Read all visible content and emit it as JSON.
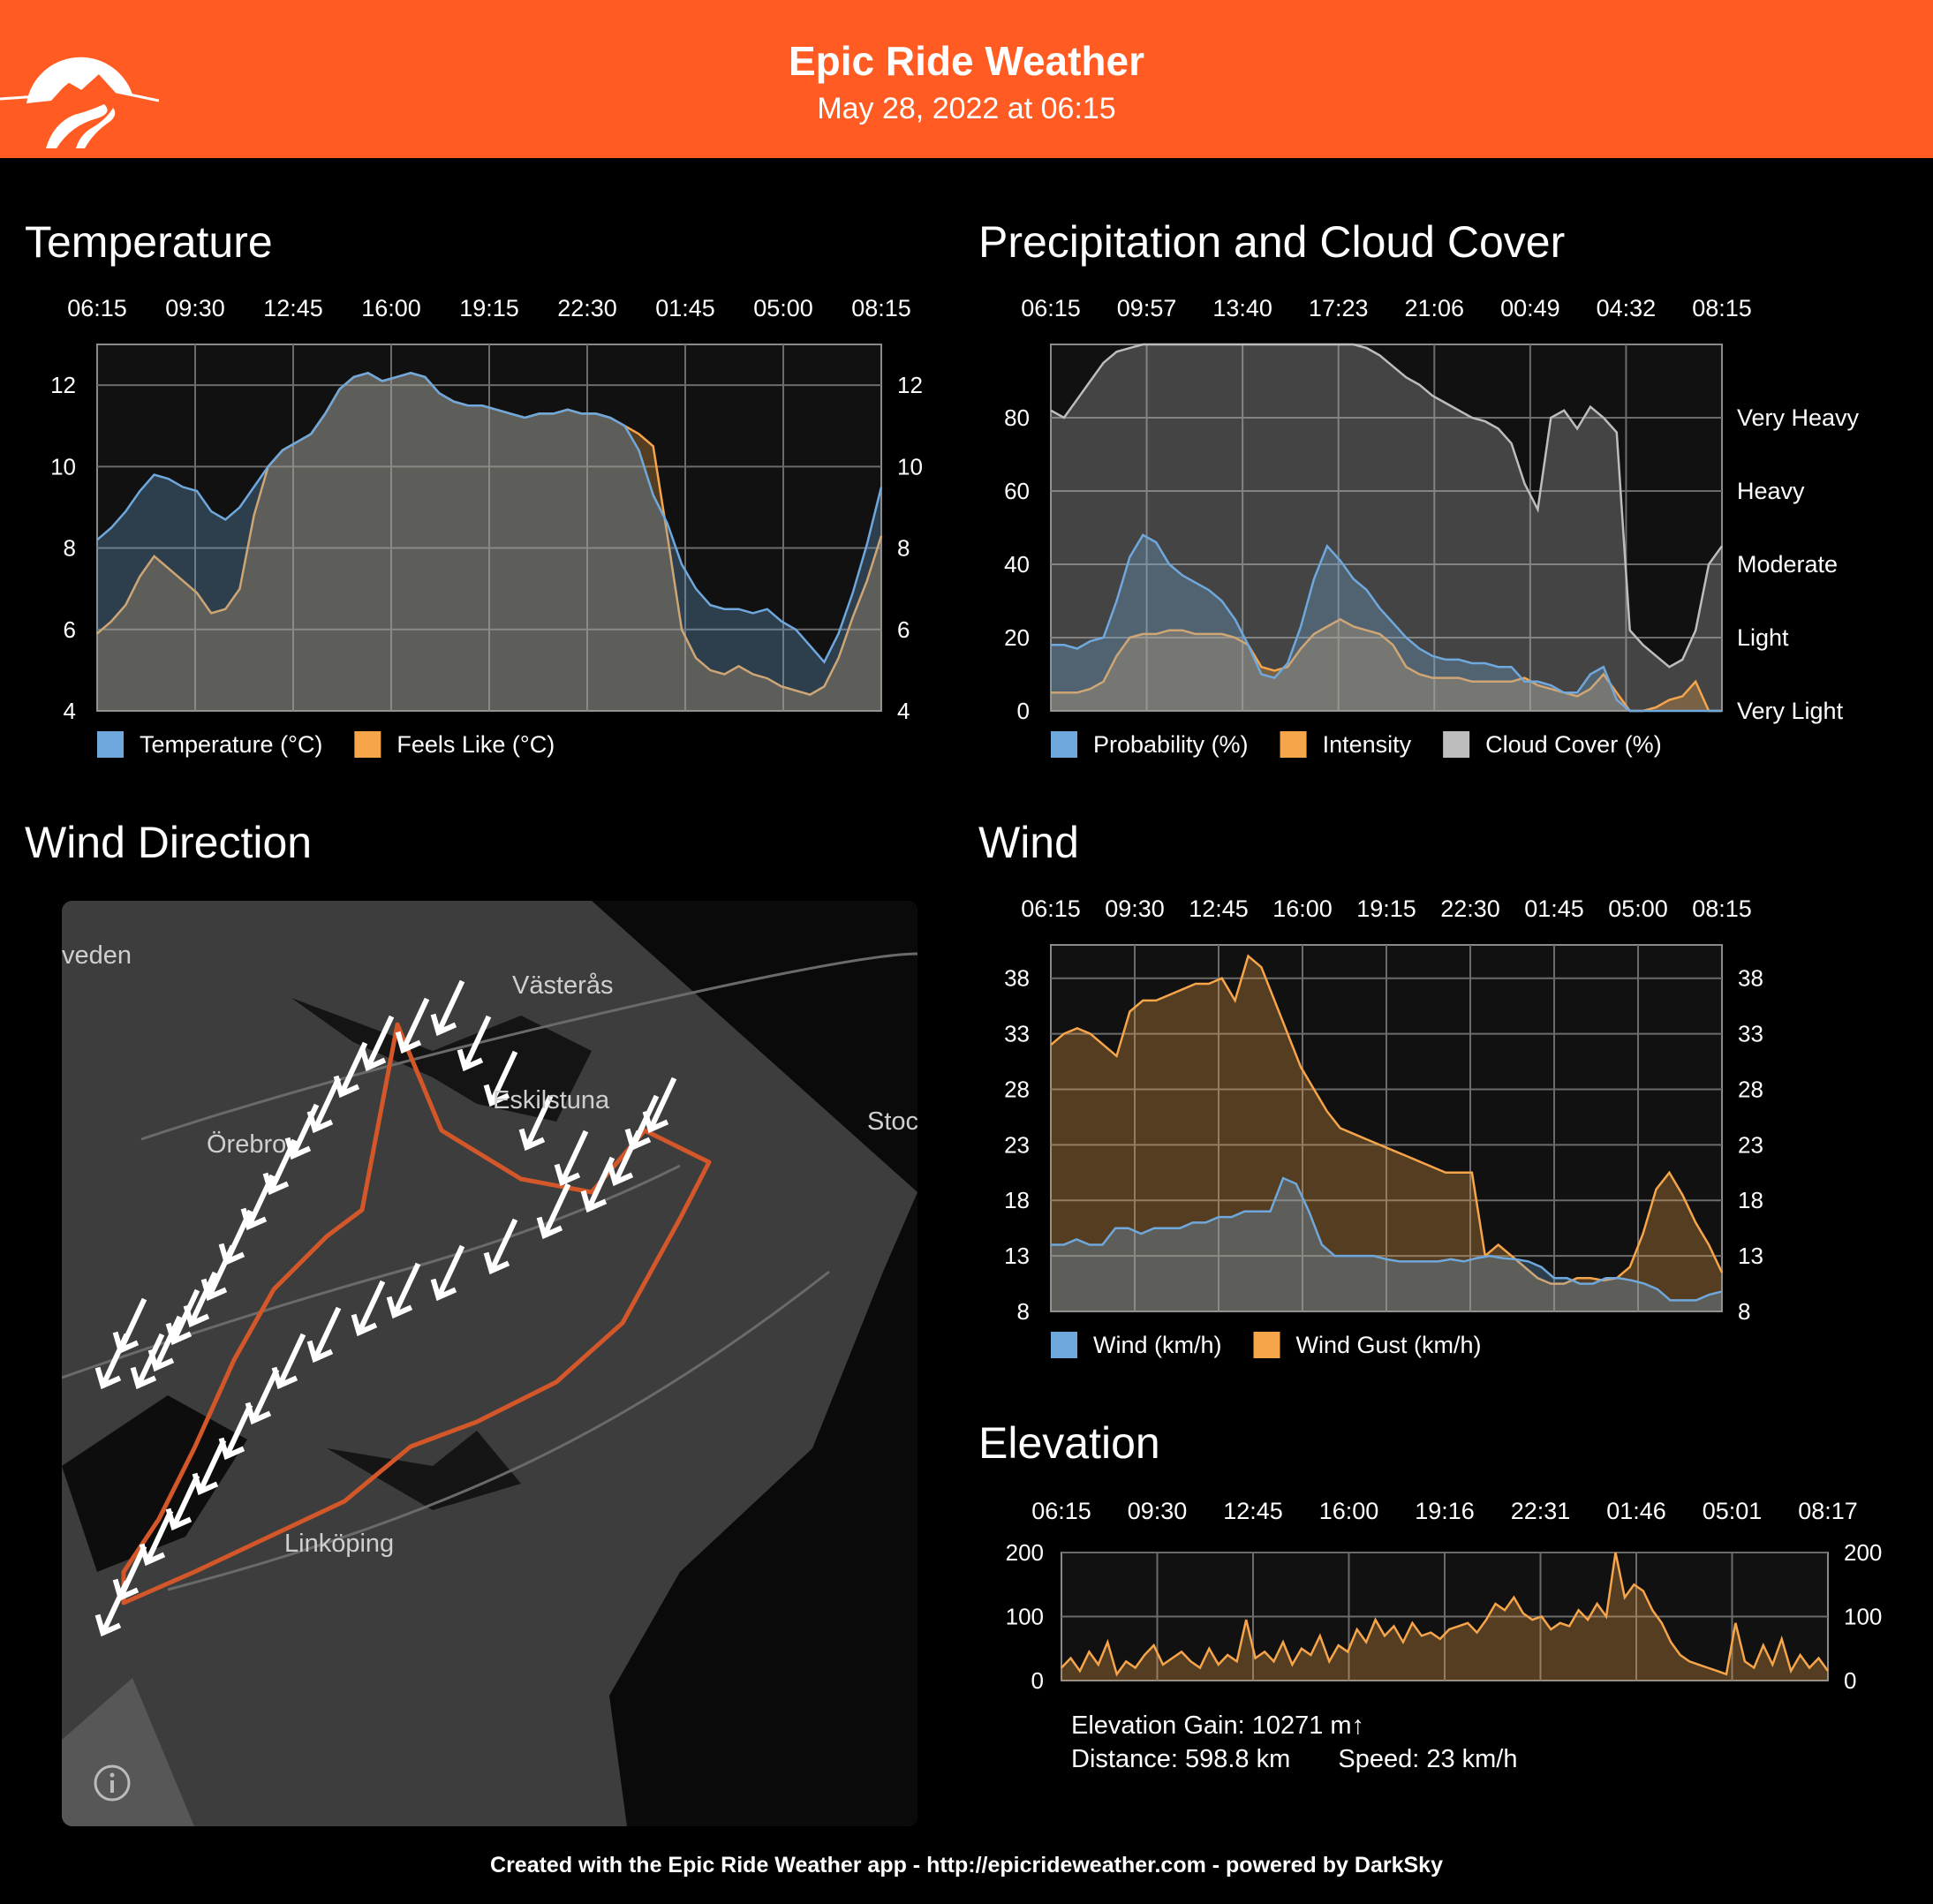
{
  "header": {
    "title": "Epic Ride Weather",
    "subtitle": "May 28, 2022 at 06:15"
  },
  "sections": {
    "temperature": "Temperature",
    "precipitation": "Precipitation and Cloud Cover",
    "wind_direction": "Wind Direction",
    "wind": "Wind",
    "elevation": "Elevation"
  },
  "map": {
    "city_labels": [
      "veden",
      "Västerås",
      "Eskilstuna",
      "Örebro",
      "Stoc",
      "Linköping"
    ],
    "info_icon": "info-icon"
  },
  "stats": {
    "elevation_gain": "Elevation Gain: 10271 m↑",
    "distance": "Distance: 598.8 km",
    "speed": "Speed: 23 km/h"
  },
  "footer": "Created with the Epic Ride Weather app - http://epicrideweather.com - powered by DarkSky",
  "colors": {
    "header_bg": "#ff5b22",
    "blue_series": "#6fa8dc",
    "orange_series": "#f6a54a",
    "gray_series": "#bdbdbd",
    "route": "#d4572a"
  },
  "chart_data": [
    {
      "id": "temperature",
      "type": "area",
      "time_ticks": [
        "06:15",
        "09:30",
        "12:45",
        "16:00",
        "19:15",
        "22:30",
        "01:45",
        "05:00",
        "08:15"
      ],
      "ylim": [
        4,
        13
      ],
      "yticks": [
        4,
        6,
        8,
        10,
        12
      ],
      "grid": true,
      "series": [
        {
          "name": "Temperature (°C)",
          "color": "#6fa8dc",
          "values": [
            8.2,
            8.5,
            8.9,
            9.4,
            9.8,
            9.7,
            9.5,
            9.4,
            8.9,
            8.7,
            9.0,
            9.5,
            10.0,
            10.4,
            10.6,
            10.8,
            11.3,
            11.9,
            12.2,
            12.3,
            12.1,
            12.2,
            12.3,
            12.2,
            11.8,
            11.6,
            11.5,
            11.5,
            11.4,
            11.3,
            11.2,
            11.3,
            11.3,
            11.4,
            11.3,
            11.3,
            11.2,
            11.0,
            10.4,
            9.3,
            8.6,
            7.6,
            7.0,
            6.6,
            6.5,
            6.5,
            6.4,
            6.5,
            6.2,
            6.0,
            5.6,
            5.2,
            5.9,
            6.9,
            8.1,
            9.5
          ]
        },
        {
          "name": "Feels Like (°C)",
          "color": "#f6a54a",
          "values": [
            5.9,
            6.2,
            6.6,
            7.3,
            7.8,
            7.5,
            7.2,
            6.9,
            6.4,
            6.5,
            7.0,
            8.8,
            10.0,
            10.4,
            10.6,
            10.8,
            11.3,
            11.9,
            12.2,
            12.3,
            12.1,
            12.2,
            12.3,
            12.2,
            11.8,
            11.6,
            11.5,
            11.5,
            11.4,
            11.3,
            11.2,
            11.3,
            11.3,
            11.4,
            11.3,
            11.3,
            11.2,
            11.0,
            10.8,
            10.5,
            8.3,
            6.0,
            5.3,
            5.0,
            4.9,
            5.1,
            4.9,
            4.8,
            4.6,
            4.5,
            4.4,
            4.6,
            5.3,
            6.3,
            7.2,
            8.3
          ]
        }
      ]
    },
    {
      "id": "precipitation",
      "type": "area",
      "time_ticks": [
        "06:15",
        "09:57",
        "13:40",
        "17:23",
        "21:06",
        "00:49",
        "04:32",
        "08:15"
      ],
      "ylim": [
        0,
        100
      ],
      "yticks": [
        0,
        20,
        40,
        60,
        80
      ],
      "right_labels": [
        "Very Light",
        "Light",
        "Moderate",
        "Heavy",
        "Very Heavy"
      ],
      "grid": true,
      "series": [
        {
          "name": "Probability (%)",
          "color": "#6fa8dc",
          "values": [
            18,
            18,
            17,
            19,
            20,
            30,
            42,
            48,
            46,
            40,
            37,
            35,
            33,
            30,
            25,
            18,
            10,
            9,
            13,
            23,
            36,
            45,
            41,
            36,
            33,
            28,
            24,
            20,
            17,
            15,
            14,
            14,
            13,
            13,
            12,
            12,
            8,
            8,
            7,
            5,
            5,
            10,
            12,
            3,
            0,
            0,
            0,
            0,
            0,
            0,
            0,
            0
          ]
        },
        {
          "name": "Intensity",
          "color": "#f6a54a",
          "values": [
            5,
            5,
            5,
            6,
            8,
            15,
            20,
            21,
            21,
            22,
            22,
            21,
            21,
            21,
            20,
            18,
            12,
            11,
            12,
            17,
            21,
            23,
            25,
            23,
            22,
            21,
            18,
            12,
            10,
            9,
            9,
            9,
            8,
            8,
            8,
            8,
            9,
            7,
            6,
            5,
            4,
            6,
            10,
            5,
            0,
            0,
            1,
            3,
            4,
            8,
            0,
            0
          ]
        },
        {
          "name": "Cloud Cover (%)",
          "color": "#bdbdbd",
          "values": [
            82,
            80,
            85,
            90,
            95,
            98,
            99,
            100,
            100,
            100,
            100,
            100,
            100,
            100,
            100,
            100,
            100,
            100,
            100,
            100,
            100,
            100,
            100,
            100,
            99,
            97,
            94,
            91,
            89,
            86,
            84,
            82,
            80,
            79,
            77,
            73,
            62,
            55,
            80,
            82,
            77,
            83,
            80,
            76,
            22,
            18,
            15,
            12,
            14,
            22,
            40,
            45
          ]
        }
      ]
    },
    {
      "id": "wind",
      "type": "area",
      "time_ticks": [
        "06:15",
        "09:30",
        "12:45",
        "16:00",
        "19:15",
        "22:30",
        "01:45",
        "05:00",
        "08:15"
      ],
      "ylim": [
        8,
        41
      ],
      "yticks": [
        8,
        13,
        18,
        23,
        28,
        33,
        38
      ],
      "grid": true,
      "series": [
        {
          "name": "Wind (km/h)",
          "color": "#6fa8dc",
          "values": [
            14,
            14,
            14.5,
            14,
            14,
            15.5,
            15.5,
            15,
            15.5,
            15.5,
            15.5,
            16,
            16,
            16.5,
            16.5,
            17,
            17,
            17,
            20,
            19.5,
            17,
            14,
            13,
            13,
            13,
            13,
            12.7,
            12.5,
            12.5,
            12.5,
            12.5,
            12.7,
            12.5,
            12.8,
            13,
            12.8,
            12.7,
            12.5,
            12,
            11,
            11,
            10.5,
            10.5,
            11,
            11,
            10.8,
            10.5,
            10,
            9,
            9,
            9,
            9.5,
            9.8
          ]
        },
        {
          "name": "Wind Gust (km/h)",
          "color": "#f6a54a",
          "values": [
            32,
            33,
            33.5,
            33,
            32,
            31,
            35,
            36,
            36,
            36.5,
            37,
            37.5,
            37.5,
            38,
            36,
            40,
            39,
            36,
            33,
            30,
            28,
            26,
            24.5,
            24,
            23.5,
            23,
            22.5,
            22,
            21.5,
            21,
            20.5,
            20.5,
            20.5,
            13,
            14,
            13,
            12,
            11,
            10.5,
            10.5,
            11,
            11,
            10.8,
            11,
            12,
            15,
            19,
            20.5,
            18.5,
            16,
            14,
            11.5
          ]
        }
      ]
    },
    {
      "id": "elevation",
      "type": "area",
      "time_ticks": [
        "06:15",
        "09:30",
        "12:45",
        "16:00",
        "19:16",
        "22:31",
        "01:46",
        "05:01",
        "08:17"
      ],
      "ylim": [
        0,
        200
      ],
      "yticks": [
        0,
        100,
        200
      ],
      "grid": true,
      "series": [
        {
          "name": "Elevation",
          "color": "#f6a54a",
          "values": [
            20,
            35,
            15,
            45,
            25,
            60,
            10,
            30,
            20,
            40,
            55,
            25,
            35,
            45,
            30,
            20,
            50,
            25,
            40,
            30,
            95,
            35,
            45,
            30,
            60,
            25,
            50,
            40,
            70,
            30,
            55,
            45,
            80,
            60,
            95,
            70,
            85,
            60,
            90,
            70,
            75,
            65,
            80,
            85,
            90,
            75,
            95,
            120,
            110,
            130,
            105,
            95,
            100,
            80,
            90,
            85,
            110,
            95,
            120,
            100,
            200,
            130,
            150,
            140,
            110,
            90,
            60,
            40,
            30,
            25,
            20,
            15,
            10,
            90,
            30,
            20,
            55,
            25,
            65,
            15,
            40,
            20,
            35,
            15
          ]
        }
      ]
    }
  ]
}
